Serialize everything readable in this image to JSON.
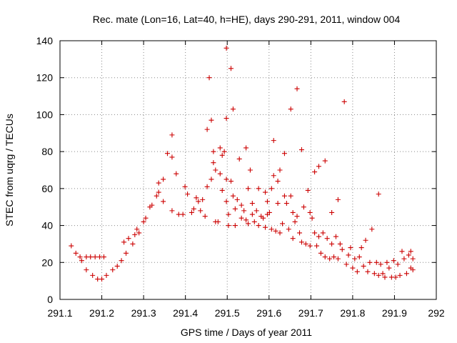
{
  "chart_data": {
    "type": "scatter",
    "title": "Rec. mate (Lon=16, Lat=40, h=HE), days 290-291, 2011, window 004",
    "xlabel": "GPS time / Days of year 2011",
    "ylabel": "STEC from uqrg / TECUs",
    "xlim": [
      291.1,
      292
    ],
    "ylim": [
      0,
      140
    ],
    "x_tick_labels": [
      "291.1",
      "291.2",
      "291.3",
      "291.4",
      "291.5",
      "291.6",
      "291.7",
      "291.8",
      "291.9",
      "292"
    ],
    "y_tick_labels": [
      "0",
      "20",
      "40",
      "60",
      "80",
      "100",
      "120",
      "140"
    ],
    "grid": true,
    "marker": "plus",
    "color": "#cc0000",
    "points": [
      [
        291.127,
        29
      ],
      [
        291.138,
        25
      ],
      [
        291.148,
        23
      ],
      [
        291.152,
        21
      ],
      [
        291.163,
        16
      ],
      [
        291.163,
        23
      ],
      [
        291.173,
        23
      ],
      [
        291.178,
        13
      ],
      [
        291.184,
        23
      ],
      [
        291.19,
        11
      ],
      [
        291.195,
        23
      ],
      [
        291.2,
        11
      ],
      [
        291.205,
        23
      ],
      [
        291.211,
        13
      ],
      [
        291.226,
        16
      ],
      [
        291.237,
        18
      ],
      [
        291.247,
        21
      ],
      [
        291.253,
        31
      ],
      [
        291.258,
        25
      ],
      [
        291.264,
        33
      ],
      [
        291.274,
        30
      ],
      [
        291.279,
        35
      ],
      [
        291.284,
        38
      ],
      [
        291.289,
        36
      ],
      [
        291.3,
        42
      ],
      [
        291.305,
        44
      ],
      [
        291.315,
        50
      ],
      [
        291.32,
        51
      ],
      [
        291.331,
        56
      ],
      [
        291.336,
        58
      ],
      [
        291.336,
        63
      ],
      [
        291.347,
        53
      ],
      [
        291.347,
        65
      ],
      [
        291.357,
        79
      ],
      [
        291.368,
        89
      ],
      [
        291.368,
        48
      ],
      [
        291.368,
        77
      ],
      [
        291.378,
        68
      ],
      [
        291.384,
        46
      ],
      [
        291.394,
        46
      ],
      [
        291.399,
        61
      ],
      [
        291.405,
        57
      ],
      [
        291.415,
        47
      ],
      [
        291.42,
        49
      ],
      [
        291.426,
        55
      ],
      [
        291.431,
        53
      ],
      [
        291.436,
        48
      ],
      [
        291.441,
        54
      ],
      [
        291.447,
        45
      ],
      [
        291.452,
        92
      ],
      [
        291.452,
        61
      ],
      [
        291.457,
        120
      ],
      [
        291.462,
        65
      ],
      [
        291.462,
        97
      ],
      [
        291.467,
        80
      ],
      [
        291.467,
        74
      ],
      [
        291.472,
        70
      ],
      [
        291.472,
        42
      ],
      [
        291.478,
        42
      ],
      [
        291.483,
        68
      ],
      [
        291.483,
        82
      ],
      [
        291.488,
        78
      ],
      [
        291.488,
        59
      ],
      [
        291.493,
        80
      ],
      [
        291.498,
        98
      ],
      [
        291.498,
        136
      ],
      [
        291.498,
        65
      ],
      [
        291.498,
        53
      ],
      [
        291.503,
        46
      ],
      [
        291.503,
        40
      ],
      [
        291.509,
        64
      ],
      [
        291.509,
        125
      ],
      [
        291.514,
        103
      ],
      [
        291.514,
        56
      ],
      [
        291.519,
        49
      ],
      [
        291.519,
        40
      ],
      [
        291.524,
        54
      ],
      [
        291.529,
        76
      ],
      [
        291.534,
        44
      ],
      [
        291.534,
        51
      ],
      [
        291.54,
        48
      ],
      [
        291.545,
        82
      ],
      [
        291.545,
        43
      ],
      [
        291.55,
        60
      ],
      [
        291.55,
        41
      ],
      [
        291.555,
        70
      ],
      [
        291.56,
        52
      ],
      [
        291.56,
        46
      ],
      [
        291.565,
        42
      ],
      [
        291.57,
        48
      ],
      [
        291.575,
        60
      ],
      [
        291.575,
        40
      ],
      [
        291.581,
        45
      ],
      [
        291.586,
        44
      ],
      [
        291.591,
        58
      ],
      [
        291.591,
        39
      ],
      [
        291.596,
        53
      ],
      [
        291.596,
        46
      ],
      [
        291.601,
        47
      ],
      [
        291.606,
        60
      ],
      [
        291.606,
        38
      ],
      [
        291.611,
        86
      ],
      [
        291.611,
        67
      ],
      [
        291.616,
        37
      ],
      [
        291.621,
        52
      ],
      [
        291.621,
        64
      ],
      [
        291.626,
        70
      ],
      [
        291.626,
        36
      ],
      [
        291.632,
        41
      ],
      [
        291.637,
        56
      ],
      [
        291.637,
        79
      ],
      [
        291.642,
        52
      ],
      [
        291.647,
        38
      ],
      [
        291.652,
        56
      ],
      [
        291.652,
        103
      ],
      [
        291.657,
        47
      ],
      [
        291.657,
        33
      ],
      [
        291.662,
        42
      ],
      [
        291.667,
        45
      ],
      [
        291.667,
        114
      ],
      [
        291.673,
        36
      ],
      [
        291.678,
        81
      ],
      [
        291.678,
        31
      ],
      [
        291.683,
        50
      ],
      [
        291.688,
        30
      ],
      [
        291.693,
        59
      ],
      [
        291.698,
        47
      ],
      [
        291.698,
        29
      ],
      [
        291.703,
        44
      ],
      [
        291.709,
        36
      ],
      [
        291.709,
        69
      ],
      [
        291.714,
        29
      ],
      [
        291.719,
        34
      ],
      [
        291.719,
        72
      ],
      [
        291.724,
        25
      ],
      [
        291.729,
        36
      ],
      [
        291.734,
        75
      ],
      [
        291.734,
        23
      ],
      [
        291.739,
        33
      ],
      [
        291.745,
        22
      ],
      [
        291.75,
        47
      ],
      [
        291.75,
        30
      ],
      [
        291.755,
        23
      ],
      [
        291.76,
        34
      ],
      [
        291.765,
        54
      ],
      [
        291.765,
        22
      ],
      [
        291.77,
        30
      ],
      [
        291.775,
        27
      ],
      [
        291.78,
        107
      ],
      [
        291.785,
        19
      ],
      [
        291.79,
        24
      ],
      [
        291.795,
        28
      ],
      [
        291.8,
        17
      ],
      [
        291.805,
        22
      ],
      [
        291.811,
        15
      ],
      [
        291.816,
        23
      ],
      [
        291.821,
        28
      ],
      [
        291.826,
        18
      ],
      [
        291.831,
        32
      ],
      [
        291.836,
        15
      ],
      [
        291.841,
        20
      ],
      [
        291.846,
        38
      ],
      [
        291.852,
        14
      ],
      [
        291.857,
        20
      ],
      [
        291.862,
        57
      ],
      [
        291.862,
        13
      ],
      [
        291.867,
        19
      ],
      [
        291.872,
        14
      ],
      [
        291.877,
        12
      ],
      [
        291.882,
        20
      ],
      [
        291.887,
        17
      ],
      [
        291.893,
        12
      ],
      [
        291.898,
        21
      ],
      [
        291.903,
        12
      ],
      [
        291.908,
        19
      ],
      [
        291.913,
        13
      ],
      [
        291.918,
        26
      ],
      [
        291.923,
        22
      ],
      [
        291.929,
        14
      ],
      [
        291.934,
        24
      ],
      [
        291.939,
        17
      ],
      [
        291.939,
        26
      ],
      [
        291.944,
        22
      ],
      [
        291.944,
        16
      ]
    ]
  }
}
